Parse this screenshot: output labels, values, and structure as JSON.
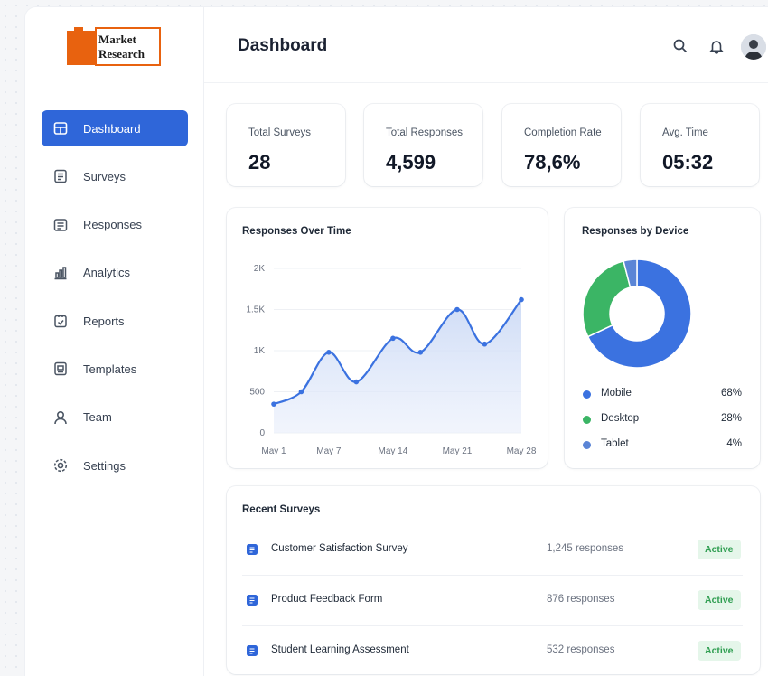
{
  "app": {
    "logo_line1": "Market",
    "logo_line2": "Research"
  },
  "sidebar": {
    "items": [
      {
        "label": "Dashboard",
        "icon": "dashboard-icon",
        "active": true
      },
      {
        "label": "Surveys",
        "icon": "surveys-icon"
      },
      {
        "label": "Responses",
        "icon": "responses-icon"
      },
      {
        "label": "Analytics",
        "icon": "analytics-icon"
      },
      {
        "label": "Reports",
        "icon": "reports-icon"
      },
      {
        "label": "Templates",
        "icon": "templates-icon"
      },
      {
        "label": "Team",
        "icon": "user-icon"
      },
      {
        "label": "Settings",
        "icon": "gear-icon"
      }
    ]
  },
  "header": {
    "title": "Dashboard",
    "icons": [
      "search-icon",
      "bell-icon",
      "avatar"
    ]
  },
  "stats": [
    {
      "label": "Total Surveys",
      "value": "28"
    },
    {
      "label": "Total Responses",
      "value": "4,599"
    },
    {
      "label": "Completion Rate",
      "value": "78,6%"
    },
    {
      "label": "Avg. Time",
      "value": "05:32"
    }
  ],
  "colors": {
    "accent": "#2f66d9",
    "line": "#3b72e0",
    "mobile": "#3b72e0",
    "desktop": "#3bb565",
    "tablet": "#5b85d6",
    "badge_bg": "#e5f6ea",
    "badge_text": "#2f9e51"
  },
  "chart_data": [
    {
      "type": "line",
      "title": "Responses Over Time",
      "x_ticks": [
        "May 1",
        "May 7",
        "May 14",
        "May 21",
        "May 28"
      ],
      "y_ticks": [
        "0",
        "500",
        "1K",
        "1.5K",
        "2K"
      ],
      "ylim": [
        0,
        2000
      ],
      "x": [
        1,
        4,
        7,
        10,
        14,
        17,
        21,
        24,
        28
      ],
      "values": [
        350,
        500,
        980,
        620,
        1150,
        980,
        1500,
        1080,
        1620
      ],
      "grid": true,
      "fill": true
    },
    {
      "type": "pie",
      "title": "Responses by Device",
      "donut": true,
      "slices": [
        {
          "name": "Mobile",
          "value": 68,
          "label": "68%"
        },
        {
          "name": "Desktop",
          "value": 28,
          "label": "28%"
        },
        {
          "name": "Tablet",
          "value": 4,
          "label": "4%"
        }
      ]
    }
  ],
  "recent": {
    "title": "Recent Surveys",
    "rows": [
      {
        "name": "Customer Satisfaction Survey",
        "responses": "1,245 responses",
        "status": "Active"
      },
      {
        "name": "Product Feedback Form",
        "responses": "876 responses",
        "status": "Active"
      },
      {
        "name": "Student Learning Assessment",
        "responses": "532 responses",
        "status": "Active"
      }
    ]
  }
}
